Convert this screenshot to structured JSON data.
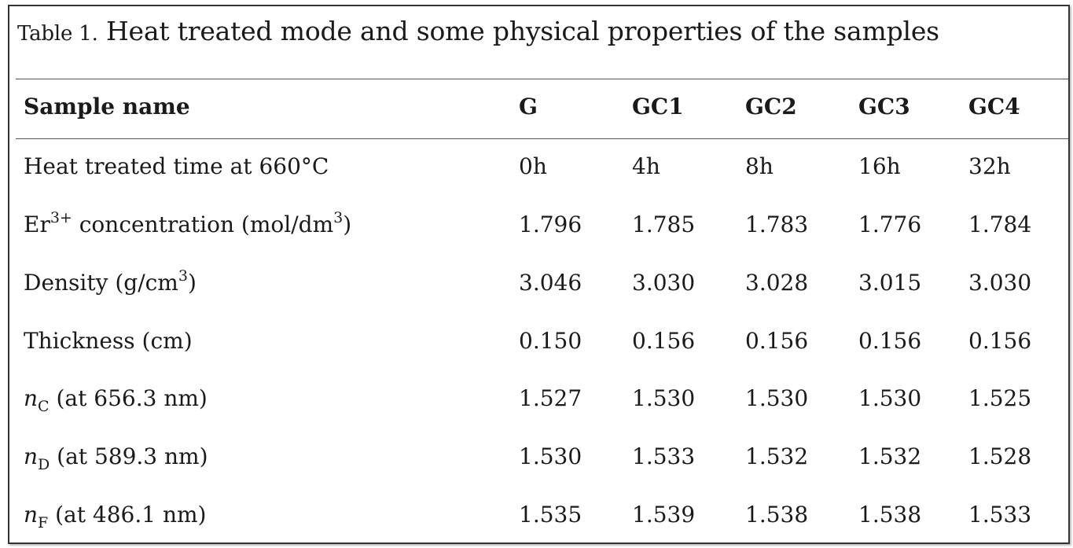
{
  "caption": {
    "label": "Table 1.",
    "text": "Heat treated mode and some physical properties of the samples"
  },
  "table": {
    "columns": [
      "Sample name",
      "G",
      "GC1",
      "GC2",
      "GC3",
      "GC4"
    ],
    "rows": [
      {
        "label": "Heat treated time at 660°C",
        "values": [
          "0h",
          "4h",
          "8h",
          "16h",
          "32h"
        ]
      },
      {
        "label_parts": {
          "pre": "Er",
          "sup": "3+",
          "mid": " concentration (mol/dm",
          "sup2": "3",
          "post": ")"
        },
        "values": [
          "1.796",
          "1.785",
          "1.783",
          "1.776",
          "1.784"
        ]
      },
      {
        "label_parts": {
          "pre": "Density (g/cm",
          "sup": "3",
          "post": ")"
        },
        "values": [
          "3.046",
          "3.030",
          "3.028",
          "3.015",
          "3.030"
        ]
      },
      {
        "label": "Thickness (cm)",
        "values": [
          "0.150",
          "0.156",
          "0.156",
          "0.156",
          "0.156"
        ]
      },
      {
        "label_parts": {
          "var": "n",
          "sub": "C",
          "post": " (at 656.3 nm)"
        },
        "values": [
          "1.527",
          "1.530",
          "1.530",
          "1.530",
          "1.525"
        ]
      },
      {
        "label_parts": {
          "var": "n",
          "sub": "D",
          "post": " (at 589.3 nm)"
        },
        "values": [
          "1.530",
          "1.533",
          "1.532",
          "1.532",
          "1.528"
        ]
      },
      {
        "label_parts": {
          "var": "n",
          "sub": "F",
          "post": " (at 486.1 nm)"
        },
        "values": [
          "1.535",
          "1.539",
          "1.538",
          "1.538",
          "1.533"
        ]
      }
    ]
  }
}
